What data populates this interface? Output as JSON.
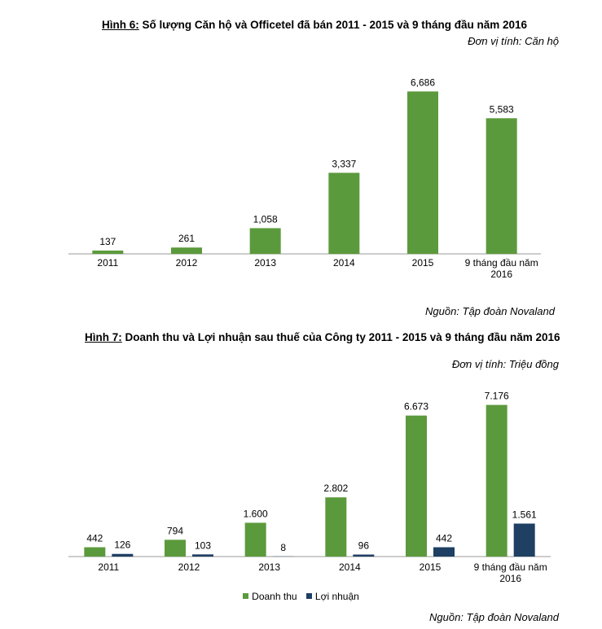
{
  "chart_data": [
    {
      "type": "bar",
      "figure_label": "Hình 6:",
      "title": "Số lượng Căn hộ và Officetel đã bán 2011 - 2015 và 9 tháng đầu năm 2016",
      "unit": "Đơn vị tính: Căn hộ",
      "source": "Nguồn: Tập đoàn Novaland",
      "categories": [
        "2011",
        "2012",
        "2013",
        "2014",
        "2015",
        "9 tháng đầu năm|2016"
      ],
      "series": [
        {
          "name": "Căn hộ",
          "color": "#5b9a3c",
          "values": [
            137,
            261,
            1058,
            3337,
            6686,
            5583
          ],
          "labels": [
            "137",
            "261",
            "1,058",
            "3,337",
            "6,686",
            "5,583"
          ]
        }
      ],
      "ylim": [
        0,
        7000
      ]
    },
    {
      "type": "bar",
      "figure_label": "Hình 7:",
      "title": "Doanh thu và Lợi nhuận sau thuế của Công ty 2011 - 2015 và 9 tháng đầu năm 2016",
      "unit": "Đơn vị tính: Triệu đồng",
      "source": "Nguồn: Tập đoàn Novaland",
      "categories": [
        "2011",
        "2012",
        "2013",
        "2014",
        "2015",
        "9 tháng đầu năm|2016"
      ],
      "series": [
        {
          "name": "Doanh thu",
          "color": "#5b9a3c",
          "values": [
            442,
            794,
            1600,
            2802,
            6673,
            7176
          ],
          "labels": [
            "442",
            "794",
            "1.600",
            "2.802",
            "6.673",
            "7.176"
          ]
        },
        {
          "name": "Lợi nhuận",
          "color": "#1f3f63",
          "values": [
            126,
            103,
            8,
            96,
            442,
            1561
          ],
          "labels": [
            "126",
            "103",
            "8",
            "96",
            "442",
            "1.561"
          ]
        }
      ],
      "ylim": [
        0,
        7700
      ],
      "legend": "bottom"
    }
  ]
}
